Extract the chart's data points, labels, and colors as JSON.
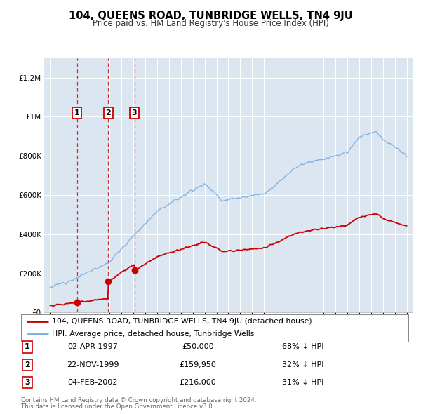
{
  "title": "104, QUEENS ROAD, TUNBRIDGE WELLS, TN4 9JU",
  "subtitle": "Price paid vs. HM Land Registry's House Price Index (HPI)",
  "transactions": [
    {
      "num": 1,
      "date": "02-APR-1997",
      "date_x": 1997.25,
      "price": 50000,
      "pct": "68% ↓ HPI"
    },
    {
      "num": 2,
      "date": "22-NOV-1999",
      "date_x": 1999.89,
      "price": 159950,
      "pct": "32% ↓ HPI"
    },
    {
      "num": 3,
      "date": "04-FEB-2002",
      "date_x": 2002.09,
      "price": 216000,
      "pct": "31% ↓ HPI"
    }
  ],
  "legend_labels": [
    "104, QUEENS ROAD, TUNBRIDGE WELLS, TN4 9JU (detached house)",
    "HPI: Average price, detached house, Tunbridge Wells"
  ],
  "footer": [
    "Contains HM Land Registry data © Crown copyright and database right 2024.",
    "This data is licensed under the Open Government Licence v3.0."
  ],
  "red_color": "#cc0000",
  "blue_color": "#7aade0",
  "bg_color": "#dce6f1",
  "ylim": [
    0,
    1300000
  ],
  "xlim": [
    1994.5,
    2025.5
  ]
}
